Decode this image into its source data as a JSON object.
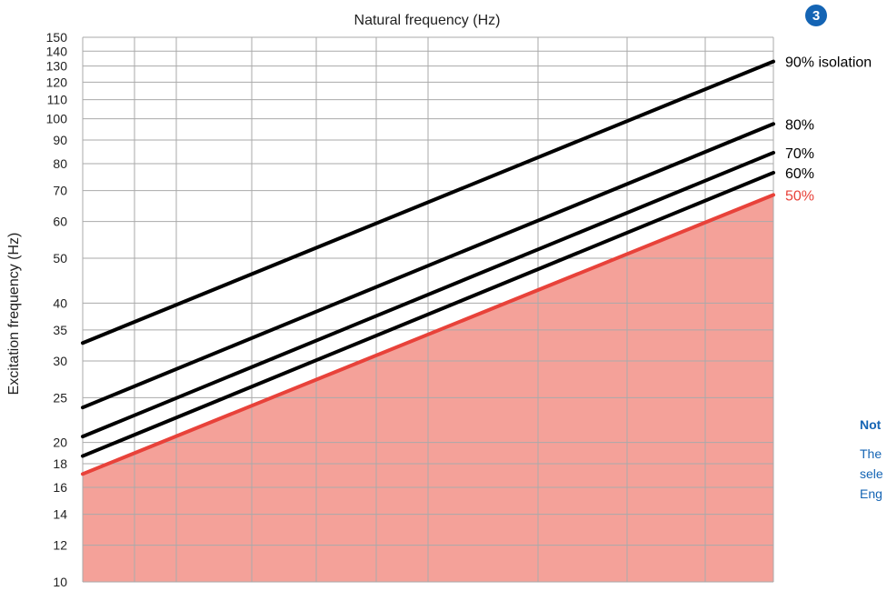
{
  "badge": {
    "label": "3"
  },
  "note": {
    "title": "Not",
    "lines": [
      "The",
      "sele",
      "Eng"
    ]
  },
  "colors": {
    "highlight": "#e8423a",
    "fill": "#f4a199",
    "line": "#000000",
    "grid": "#aaaaaa",
    "accent": "#1464b4"
  },
  "chart_data": {
    "type": "line",
    "title": "Natural frequency (Hz)",
    "xlabel": "",
    "ylabel": "Excitation frequency (Hz)",
    "y_scale": "log",
    "ylim": [
      10,
      150
    ],
    "yticks": [
      10,
      12,
      14,
      16,
      18,
      20,
      25,
      30,
      35,
      40,
      50,
      60,
      70,
      80,
      90,
      100,
      110,
      120,
      130,
      140,
      150
    ],
    "x_tick_labels_shown": false,
    "grid": true,
    "series": [
      {
        "name": "90% isolation",
        "values": [
          32.8,
          133
        ],
        "color": "#000000"
      },
      {
        "name": "80%",
        "values": [
          23.8,
          97.5
        ],
        "color": "#000000"
      },
      {
        "name": "70%",
        "values": [
          20.6,
          84.5
        ],
        "color": "#000000"
      },
      {
        "name": "60%",
        "values": [
          18.7,
          76.5
        ],
        "color": "#000000"
      },
      {
        "name": "50%",
        "values": [
          17.1,
          68.5
        ],
        "color": "#e8423a",
        "filled_below": true
      }
    ]
  }
}
